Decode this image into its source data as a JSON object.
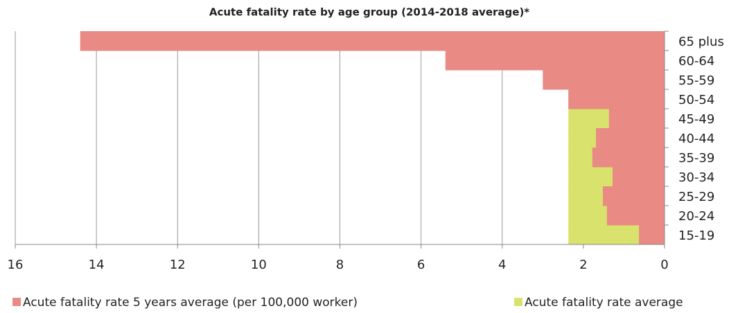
{
  "chart_data": {
    "type": "bar",
    "orientation": "horizontal",
    "title": "Acute fatality rate by age group (2014-2018 average)*",
    "categories": [
      "65 plus",
      "60-64",
      "55-59",
      "50-54",
      "45-49",
      "40-44",
      "35-39",
      "30-34",
      "25-29",
      "20-24",
      "15-19"
    ],
    "series": [
      {
        "name": "Acute fatality rate average",
        "color": "#d9e26c",
        "values": [
          2.37,
          2.37,
          2.37,
          2.37,
          2.37,
          2.37,
          2.37,
          2.37,
          2.37,
          2.37,
          2.37
        ]
      },
      {
        "name": "Acute fatality rate 5 years average (per 100,000 worker)",
        "color": "#e98a85",
        "values": [
          14.4,
          5.4,
          3.0,
          2.37,
          1.37,
          1.69,
          1.78,
          1.28,
          1.52,
          1.42,
          0.63
        ]
      }
    ],
    "xlim": [
      16,
      0
    ],
    "xticks": [
      16,
      14,
      12,
      10,
      8,
      6,
      4,
      2,
      0
    ],
    "grid": true
  }
}
